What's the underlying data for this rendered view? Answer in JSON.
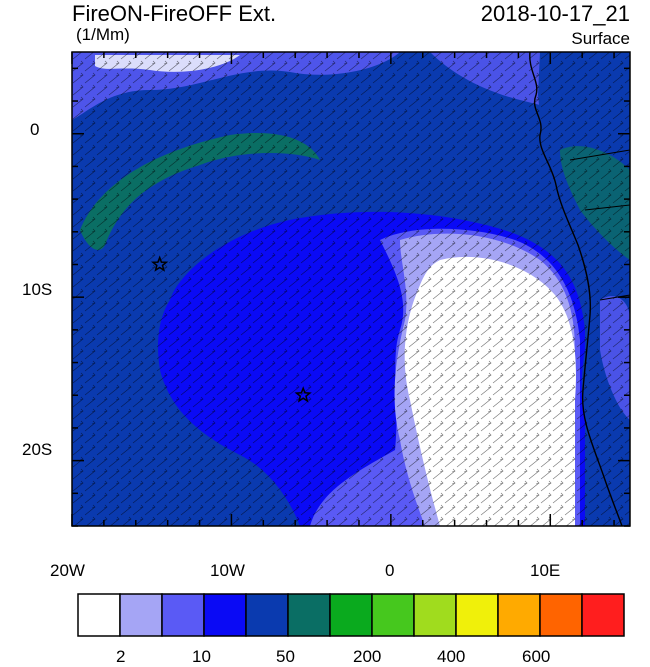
{
  "title": {
    "left": "FireON-FireOFF Ext.",
    "units": "(1/Mm)",
    "right": "2018-10-17_21",
    "level": "Surface"
  },
  "axes": {
    "x_ticks": [
      "20W",
      "10W",
      "0",
      "10E"
    ],
    "y_ticks": [
      "0",
      "10S",
      "20S"
    ],
    "lon_range": [
      -20,
      15
    ],
    "lat_range": [
      -24,
      5
    ]
  },
  "colorbar": {
    "labels": [
      "2",
      "10",
      "50",
      "200",
      "400",
      "600"
    ],
    "colors": [
      "#ffffff",
      "#a5a5f5",
      "#5a5af5",
      "#0a0af5",
      "#0a3aaf",
      "#0a6e64",
      "#0aaa1e",
      "#46c81e",
      "#a0dc1e",
      "#f0f00a",
      "#ffaa00",
      "#ff6400",
      "#ff1e1e"
    ]
  },
  "markers": [
    {
      "name": "star",
      "lon": -14.5,
      "lat": -8.0
    },
    {
      "name": "star",
      "lon": -5.5,
      "lat": -16.0
    }
  ],
  "colors": {
    "ocean_base": "#0a3aaf",
    "inner_blue": "#0a0af5",
    "light_blue": "#5a5af5",
    "pale_blue": "#a5a5f5",
    "green_band": "#0a6e64",
    "land": "#0a3aaf"
  }
}
